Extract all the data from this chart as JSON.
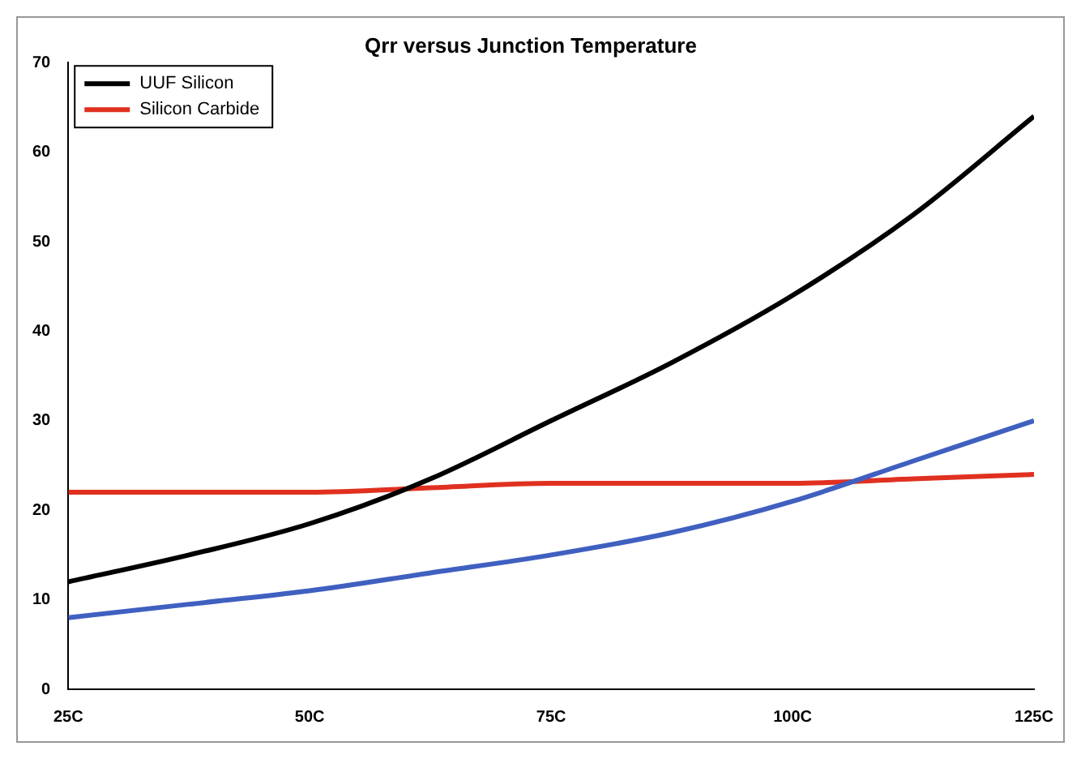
{
  "chart_data": {
    "type": "line",
    "title": "Qrr versus Junction Temperature",
    "legend": "top left",
    "grid": false,
    "marker": "none",
    "line_style": "solid",
    "xlim": [
      25,
      125
    ],
    "xticks": [
      {
        "value": 25,
        "label": "25C"
      },
      {
        "value": 50,
        "label": "50C"
      },
      {
        "value": 75,
        "label": "75C"
      },
      {
        "value": 100,
        "label": "100C"
      },
      {
        "value": 125,
        "label": "125C"
      }
    ],
    "ylim": [
      0,
      70
    ],
    "yticks": [
      0,
      10,
      20,
      30,
      40,
      50,
      60,
      70
    ],
    "x": [
      25,
      37.5,
      50,
      62.5,
      75,
      87.5,
      100,
      112.5,
      125
    ],
    "series": [
      {
        "color": "#4060c0",
        "values": [
          8,
          9.5,
          11,
          13,
          15,
          17.5,
          21,
          25.5,
          30
        ]
      },
      {
        "name": "UUF Silicon",
        "color": "#000000",
        "values": [
          12,
          15,
          18.5,
          23.5,
          30,
          36.5,
          44,
          53,
          64
        ]
      },
      {
        "name": "Silicon Carbide",
        "color": "#e03020",
        "values": [
          22,
          22,
          22,
          22.5,
          23,
          23,
          23,
          23.5,
          24
        ]
      }
    ]
  }
}
